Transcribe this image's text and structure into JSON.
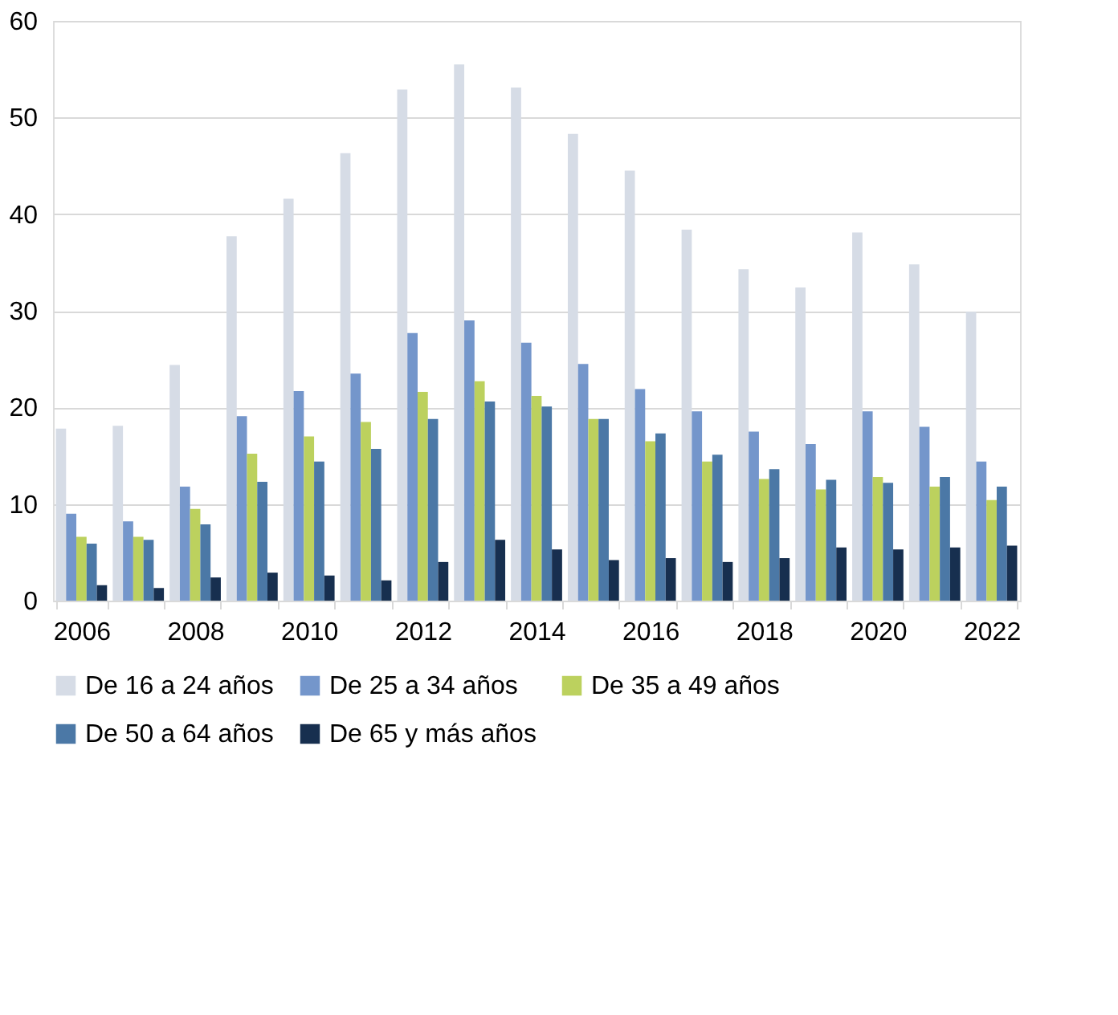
{
  "chart_data": {
    "type": "bar",
    "categories": [
      "2006",
      null,
      "2008",
      null,
      "2010",
      null,
      "2012",
      null,
      "2014",
      null,
      "2016",
      null,
      "2018",
      null,
      "2020",
      null,
      "2022"
    ],
    "series": [
      {
        "name": "De 16 a 24 años",
        "color": "#d6dce6",
        "values": [
          17.8,
          18.1,
          24.4,
          37.7,
          41.6,
          46.3,
          52.9,
          55.5,
          53.1,
          48.3,
          44.5,
          38.4,
          34.3,
          32.4,
          38.1,
          34.8,
          29.9
        ]
      },
      {
        "name": "De 25 a 34 años",
        "color": "#7496cb",
        "values": [
          9.0,
          8.2,
          11.8,
          19.1,
          21.7,
          23.5,
          27.7,
          29.0,
          26.7,
          24.5,
          21.9,
          19.6,
          17.5,
          16.2,
          19.6,
          18.0,
          14.4
        ]
      },
      {
        "name": "De 35 a 49 años",
        "color": "#bcd15e",
        "values": [
          6.6,
          6.6,
          9.5,
          15.2,
          17.0,
          18.5,
          21.6,
          22.7,
          21.2,
          18.8,
          16.5,
          14.4,
          12.6,
          11.5,
          12.8,
          11.8,
          10.4
        ]
      },
      {
        "name": "De 50 a 64 años",
        "color": "#4b78a6",
        "values": [
          5.9,
          6.3,
          7.9,
          12.3,
          14.4,
          15.7,
          18.8,
          20.6,
          20.1,
          18.8,
          17.3,
          15.1,
          13.6,
          12.5,
          12.2,
          12.8,
          11.8
        ]
      },
      {
        "name": "De 65 y más años",
        "color": "#172f4f",
        "values": [
          1.6,
          1.3,
          2.4,
          2.9,
          2.6,
          2.1,
          4.0,
          6.3,
          5.3,
          4.2,
          4.4,
          4.0,
          4.4,
          5.5,
          5.3,
          5.5,
          5.7
        ]
      }
    ],
    "ylim": [
      0,
      60
    ],
    "yticks": [
      0,
      10,
      20,
      30,
      40,
      50,
      60
    ],
    "grid": "y",
    "legend": "bottom"
  }
}
